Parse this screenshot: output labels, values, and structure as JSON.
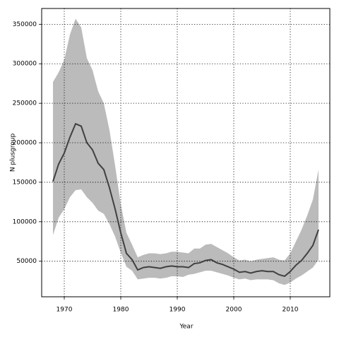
{
  "chart_data": {
    "type": "line",
    "x_label": "Year",
    "y_label": "N plusgroup",
    "x": [
      1968,
      1969,
      1970,
      1971,
      1972,
      1973,
      1974,
      1975,
      1976,
      1977,
      1978,
      1979,
      1980,
      1981,
      1982,
      1983,
      1984,
      1985,
      1986,
      1987,
      1988,
      1989,
      1990,
      1991,
      1992,
      1993,
      1994,
      1995,
      1996,
      1997,
      1998,
      1999,
      2000,
      2001,
      2002,
      2003,
      2004,
      2005,
      2006,
      2007,
      2008,
      2009,
      2010,
      2011,
      2012,
      2013,
      2014,
      2015
    ],
    "values": [
      151000,
      173000,
      187000,
      207000,
      224000,
      221000,
      200000,
      191000,
      174000,
      166000,
      143000,
      116000,
      86000,
      60000,
      52000,
      39000,
      42000,
      43000,
      42000,
      41000,
      43000,
      44000,
      43000,
      43000,
      42000,
      47000,
      48000,
      51000,
      52000,
      48000,
      46000,
      43000,
      40000,
      36000,
      37000,
      35000,
      37000,
      38000,
      37000,
      37000,
      33000,
      31000,
      37000,
      45000,
      51000,
      60000,
      70000,
      90000
    ],
    "color": "#404040",
    "band_upper": [
      277000,
      289000,
      305000,
      337000,
      357000,
      346000,
      307000,
      292000,
      265000,
      250000,
      216000,
      171000,
      122000,
      86000,
      71000,
      55000,
      58000,
      60000,
      60000,
      59000,
      60000,
      62000,
      62000,
      61000,
      60000,
      66000,
      66000,
      71000,
      72000,
      68000,
      64000,
      60000,
      55000,
      51000,
      52000,
      50000,
      52000,
      53000,
      54000,
      55000,
      52000,
      51000,
      60000,
      75000,
      90000,
      108000,
      128000,
      166000
    ],
    "band_lower": [
      83000,
      105000,
      116000,
      131000,
      140000,
      141000,
      131000,
      124000,
      114000,
      110000,
      97000,
      81000,
      61000,
      43000,
      38000,
      27000,
      28000,
      29000,
      29000,
      28000,
      29000,
      31000,
      31000,
      30000,
      33000,
      34000,
      36000,
      38000,
      38000,
      36000,
      34000,
      32000,
      29000,
      27000,
      28000,
      26000,
      27000,
      27000,
      27000,
      26000,
      22000,
      20000,
      23000,
      28000,
      32000,
      37000,
      42000,
      52000
    ],
    "band_color": "#bbbbbb",
    "xlim": [
      1966,
      2017
    ],
    "ylim": [
      5000,
      370000
    ],
    "xticks": [
      1970,
      1980,
      1990,
      2000,
      2010
    ],
    "yticks": [
      50000,
      100000,
      150000,
      200000,
      250000,
      300000,
      350000
    ],
    "grid": true
  }
}
